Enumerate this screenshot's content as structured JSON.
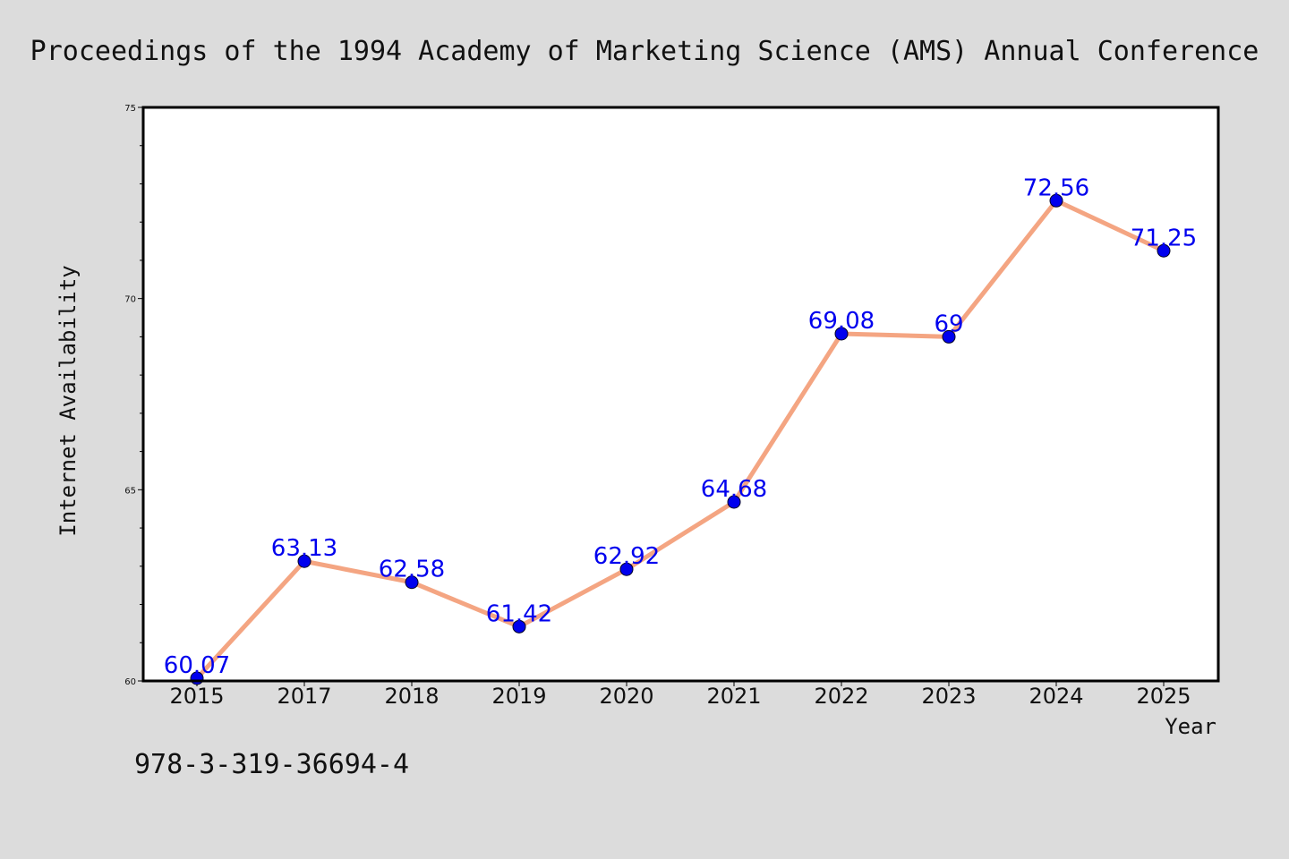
{
  "chart_data": {
    "type": "line",
    "title": "Proceedings of the 1994 Academy of Marketing Science (AMS) Annual Conference",
    "xlabel": "Year",
    "ylabel": "Internet Availability",
    "categories": [
      "2015",
      "2017",
      "2018",
      "2019",
      "2020",
      "2021",
      "2022",
      "2023",
      "2024",
      "2025"
    ],
    "series": [
      {
        "values": [
          60.07,
          63.13,
          62.58,
          61.42,
          62.92,
          64.68,
          69.08,
          69,
          72.56,
          71.25
        ],
        "labels": [
          "60.07",
          "63.13",
          "62.58",
          "61.42",
          "62.92",
          "64.68",
          "69.08",
          "69",
          "72.56",
          "71.25"
        ]
      }
    ],
    "ylim": [
      60,
      75
    ],
    "yticks": [
      "60",
      "65",
      "70",
      "75"
    ],
    "grid": false,
    "colors": {
      "line": "#f4a582",
      "marker": "#0000ee",
      "data_label": "#0000ee",
      "plot_background": "#ffffff",
      "figure_background": "#dcdcdc"
    }
  },
  "footer": {
    "isbn": "978-3-319-36694-4"
  }
}
